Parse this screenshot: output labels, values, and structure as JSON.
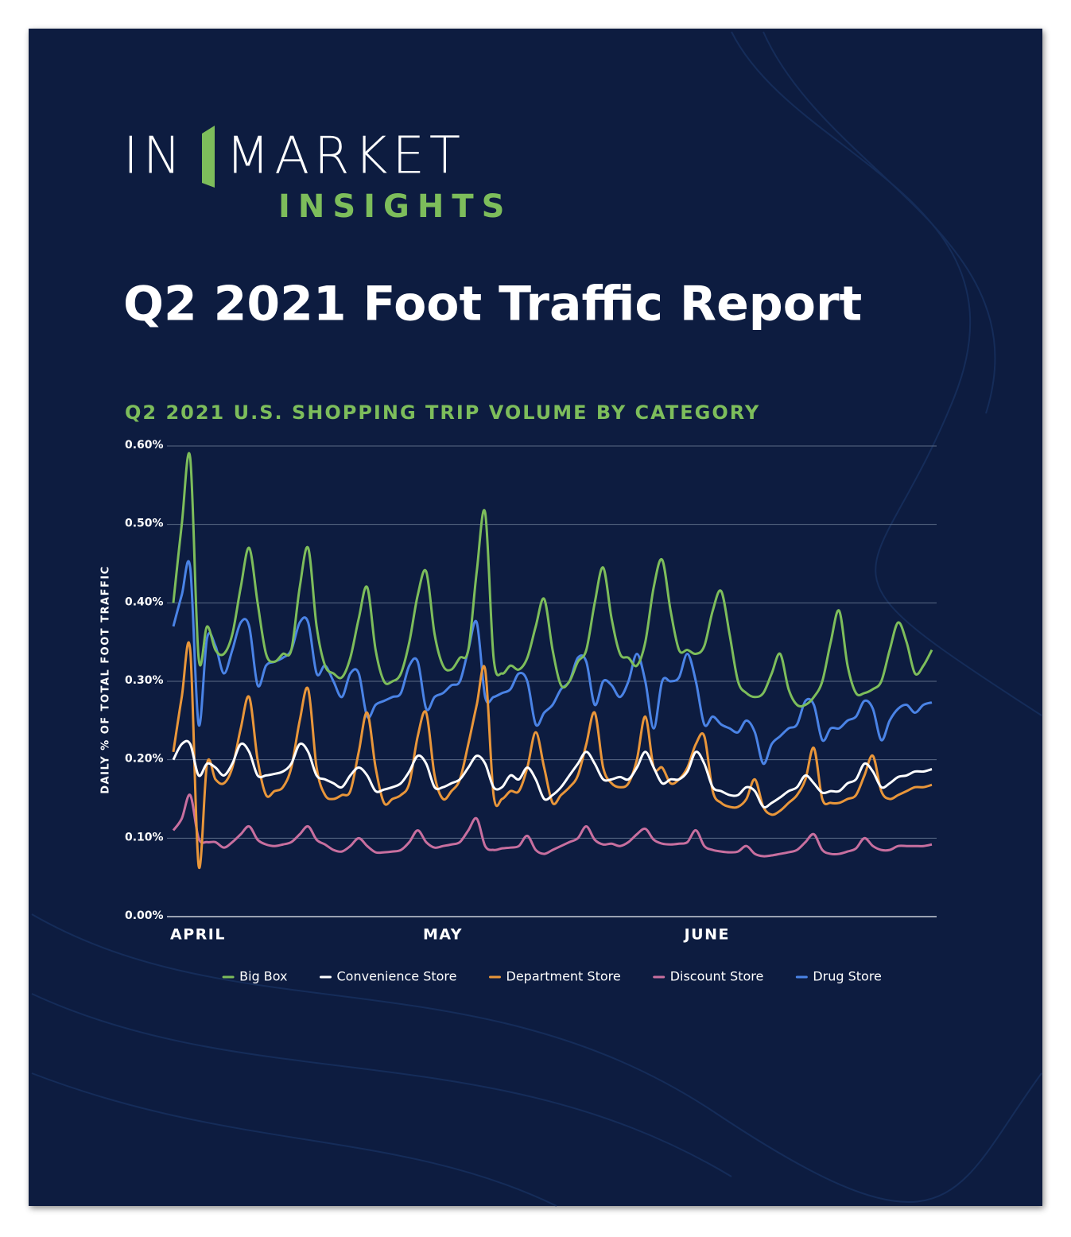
{
  "logo": {
    "left": "IN",
    "right": "MARKET",
    "tagline": "INSIGHTS"
  },
  "title": "Q2 2021 Foot Traffic Report",
  "chart_data": {
    "type": "line",
    "title": "Q2 2021 U.S. SHOPPING TRIP VOLUME BY CATEGORY",
    "y_label": "DAILY % OF TOTAL FOOT TRAFFIC",
    "categories": [
      "APRIL",
      null,
      null,
      null,
      null,
      null,
      null,
      null,
      null,
      null,
      null,
      null,
      null,
      null,
      null,
      null,
      null,
      null,
      null,
      null,
      null,
      null,
      null,
      null,
      null,
      null,
      null,
      null,
      null,
      null,
      "MAY",
      null,
      null,
      null,
      null,
      null,
      null,
      null,
      null,
      null,
      null,
      null,
      null,
      null,
      null,
      null,
      null,
      null,
      null,
      null,
      null,
      null,
      null,
      null,
      null,
      null,
      null,
      null,
      null,
      null,
      null,
      "JUNE",
      null,
      null,
      null,
      null,
      null,
      null,
      null,
      null,
      null,
      null,
      null,
      null,
      null,
      null,
      null,
      null,
      null,
      null,
      null,
      null,
      null,
      null,
      null,
      null,
      null,
      null,
      null,
      null,
      null
    ],
    "series": [
      {
        "name": "Big Box",
        "color": "#7dbd5b",
        "values": [
          0.4,
          0.5,
          0.585,
          0.33,
          0.37,
          0.34,
          0.335,
          0.36,
          0.42,
          0.47,
          0.4,
          0.335,
          0.325,
          0.335,
          0.34,
          0.42,
          0.47,
          0.37,
          0.32,
          0.31,
          0.305,
          0.33,
          0.38,
          0.42,
          0.34,
          0.3,
          0.3,
          0.31,
          0.35,
          0.41,
          0.44,
          0.36,
          0.32,
          0.315,
          0.33,
          0.34,
          0.44,
          0.515,
          0.33,
          0.31,
          0.32,
          0.315,
          0.33,
          0.37,
          0.405,
          0.34,
          0.295,
          0.3,
          0.325,
          0.34,
          0.4,
          0.445,
          0.38,
          0.335,
          0.33,
          0.32,
          0.35,
          0.42,
          0.455,
          0.39,
          0.34,
          0.34,
          0.335,
          0.345,
          0.39,
          0.415,
          0.36,
          0.3,
          0.285,
          0.28,
          0.285,
          0.31,
          0.335,
          0.29,
          0.27,
          0.27,
          0.28,
          0.3,
          0.35,
          0.39,
          0.32,
          0.285,
          0.285,
          0.29,
          0.3,
          0.34,
          0.375,
          0.35,
          0.31,
          0.32,
          0.34
        ]
      },
      {
        "name": "Convenience Store",
        "color": "#ffffff",
        "values": [
          0.2,
          0.22,
          0.22,
          0.18,
          0.195,
          0.19,
          0.18,
          0.195,
          0.22,
          0.21,
          0.18,
          0.18,
          0.182,
          0.185,
          0.195,
          0.22,
          0.21,
          0.18,
          0.175,
          0.17,
          0.165,
          0.18,
          0.19,
          0.18,
          0.16,
          0.162,
          0.165,
          0.17,
          0.185,
          0.205,
          0.195,
          0.165,
          0.165,
          0.17,
          0.175,
          0.19,
          0.205,
          0.195,
          0.165,
          0.165,
          0.18,
          0.175,
          0.19,
          0.175,
          0.15,
          0.155,
          0.165,
          0.18,
          0.195,
          0.21,
          0.195,
          0.175,
          0.175,
          0.178,
          0.175,
          0.19,
          0.21,
          0.19,
          0.17,
          0.175,
          0.175,
          0.185,
          0.21,
          0.195,
          0.165,
          0.16,
          0.155,
          0.155,
          0.165,
          0.16,
          0.14,
          0.145,
          0.152,
          0.16,
          0.165,
          0.18,
          0.17,
          0.158,
          0.16,
          0.16,
          0.17,
          0.175,
          0.195,
          0.185,
          0.165,
          0.17,
          0.178,
          0.18,
          0.185,
          0.185,
          0.188
        ]
      },
      {
        "name": "Department Store",
        "color": "#e9963a",
        "values": [
          0.21,
          0.28,
          0.34,
          0.065,
          0.195,
          0.175,
          0.17,
          0.19,
          0.24,
          0.28,
          0.2,
          0.155,
          0.16,
          0.165,
          0.19,
          0.25,
          0.29,
          0.19,
          0.155,
          0.15,
          0.155,
          0.16,
          0.21,
          0.26,
          0.19,
          0.145,
          0.15,
          0.155,
          0.17,
          0.23,
          0.26,
          0.18,
          0.15,
          0.16,
          0.175,
          0.22,
          0.27,
          0.315,
          0.155,
          0.15,
          0.16,
          0.16,
          0.19,
          0.235,
          0.19,
          0.145,
          0.155,
          0.165,
          0.18,
          0.22,
          0.26,
          0.19,
          0.17,
          0.165,
          0.17,
          0.2,
          0.255,
          0.19,
          0.19,
          0.17,
          0.175,
          0.19,
          0.22,
          0.23,
          0.16,
          0.145,
          0.14,
          0.14,
          0.15,
          0.175,
          0.14,
          0.13,
          0.135,
          0.145,
          0.155,
          0.175,
          0.215,
          0.15,
          0.145,
          0.145,
          0.15,
          0.155,
          0.18,
          0.205,
          0.16,
          0.15,
          0.155,
          0.16,
          0.165,
          0.165,
          0.168
        ]
      },
      {
        "name": "Discount Store",
        "color": "#c86f9f",
        "values": [
          0.11,
          0.125,
          0.155,
          0.1,
          0.095,
          0.095,
          0.088,
          0.095,
          0.105,
          0.115,
          0.098,
          0.092,
          0.09,
          0.092,
          0.095,
          0.105,
          0.115,
          0.098,
          0.092,
          0.085,
          0.083,
          0.09,
          0.1,
          0.09,
          0.082,
          0.082,
          0.083,
          0.085,
          0.095,
          0.11,
          0.095,
          0.088,
          0.09,
          0.092,
          0.095,
          0.11,
          0.125,
          0.09,
          0.085,
          0.087,
          0.088,
          0.09,
          0.103,
          0.085,
          0.08,
          0.085,
          0.09,
          0.095,
          0.1,
          0.115,
          0.098,
          0.092,
          0.093,
          0.09,
          0.095,
          0.105,
          0.112,
          0.098,
          0.093,
          0.092,
          0.093,
          0.095,
          0.11,
          0.09,
          0.085,
          0.083,
          0.082,
          0.083,
          0.09,
          0.08,
          0.077,
          0.078,
          0.08,
          0.082,
          0.085,
          0.095,
          0.105,
          0.085,
          0.08,
          0.08,
          0.083,
          0.087,
          0.1,
          0.09,
          0.085,
          0.085,
          0.09,
          0.09,
          0.09,
          0.09,
          0.092
        ]
      },
      {
        "name": "Drug Store",
        "color": "#4a83e6",
        "values": [
          0.37,
          0.41,
          0.445,
          0.245,
          0.355,
          0.345,
          0.31,
          0.34,
          0.375,
          0.37,
          0.295,
          0.32,
          0.325,
          0.33,
          0.34,
          0.375,
          0.375,
          0.31,
          0.32,
          0.3,
          0.28,
          0.31,
          0.31,
          0.255,
          0.27,
          0.275,
          0.28,
          0.285,
          0.32,
          0.325,
          0.265,
          0.28,
          0.285,
          0.295,
          0.3,
          0.34,
          0.375,
          0.28,
          0.28,
          0.285,
          0.29,
          0.31,
          0.3,
          0.245,
          0.26,
          0.27,
          0.29,
          0.3,
          0.33,
          0.325,
          0.27,
          0.3,
          0.295,
          0.28,
          0.3,
          0.335,
          0.3,
          0.24,
          0.3,
          0.3,
          0.305,
          0.335,
          0.3,
          0.245,
          0.255,
          0.245,
          0.24,
          0.235,
          0.25,
          0.235,
          0.195,
          0.22,
          0.23,
          0.24,
          0.245,
          0.275,
          0.27,
          0.225,
          0.24,
          0.24,
          0.25,
          0.255,
          0.275,
          0.265,
          0.225,
          0.25,
          0.265,
          0.27,
          0.26,
          0.27,
          0.273
        ]
      }
    ],
    "ylim": [
      0,
      0.6
    ],
    "yticks": [
      {
        "value": 0,
        "label": "0.00%"
      },
      {
        "value": 0.1,
        "label": "0.10%"
      },
      {
        "value": 0.2,
        "label": "0.20%"
      },
      {
        "value": 0.3,
        "label": "0.30%"
      },
      {
        "value": 0.4,
        "label": "0.40%"
      },
      {
        "value": 0.5,
        "label": "0.50%"
      },
      {
        "value": 0.6,
        "label": "0.60%"
      }
    ],
    "grid": true,
    "legend": "bottom"
  }
}
